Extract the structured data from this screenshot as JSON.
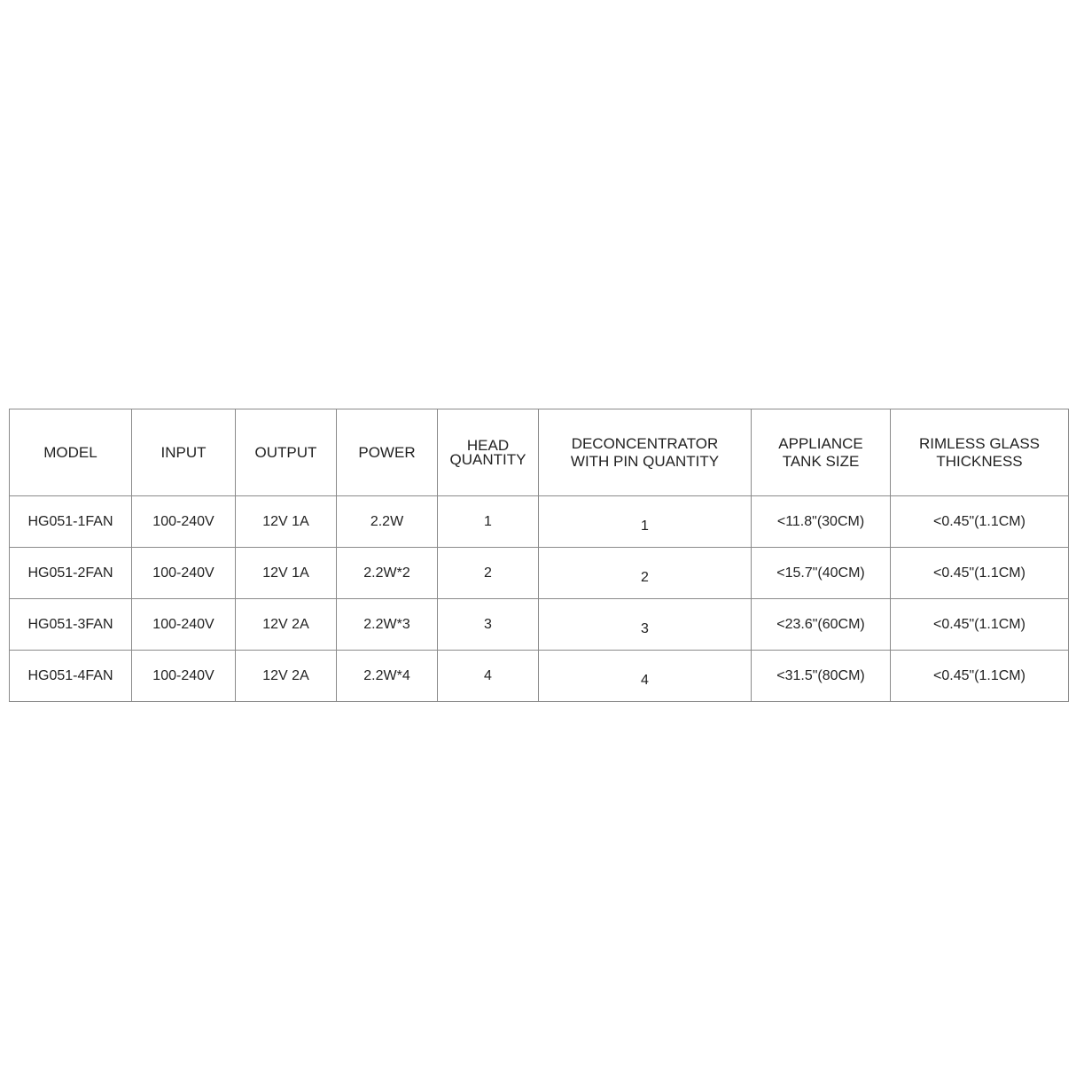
{
  "table": {
    "headers": [
      [
        "MODEL"
      ],
      [
        "INPUT"
      ],
      [
        "OUTPUT"
      ],
      [
        "POWER"
      ],
      [
        "HEAD",
        "QUANTITY"
      ],
      [
        "DECONCENTRATOR",
        "WITH PIN QUANTITY"
      ],
      [
        "APPLIANCE",
        "TANK SIZE"
      ],
      [
        "RIMLESS GLASS",
        "THICKNESS"
      ]
    ],
    "rows": [
      [
        "HG051-1FAN",
        "100-240V",
        "12V 1A",
        "2.2W",
        "1",
        "1",
        "<11.8\"(30CM)",
        "<0.45\"(1.1CM)"
      ],
      [
        "HG051-2FAN",
        "100-240V",
        "12V 1A",
        "2.2W*2",
        "2",
        "2",
        "<15.7\"(40CM)",
        "<0.45\"(1.1CM)"
      ],
      [
        "HG051-3FAN",
        "100-240V",
        "12V 2A",
        "2.2W*3",
        "3",
        "3",
        "<23.6\"(60CM)",
        "<0.45\"(1.1CM)"
      ],
      [
        "HG051-4FAN",
        "100-240V",
        "12V 2A",
        "2.2W*4",
        "4",
        "4",
        "<31.5\"(80CM)",
        "<0.45\"(1.1CM)"
      ]
    ]
  }
}
